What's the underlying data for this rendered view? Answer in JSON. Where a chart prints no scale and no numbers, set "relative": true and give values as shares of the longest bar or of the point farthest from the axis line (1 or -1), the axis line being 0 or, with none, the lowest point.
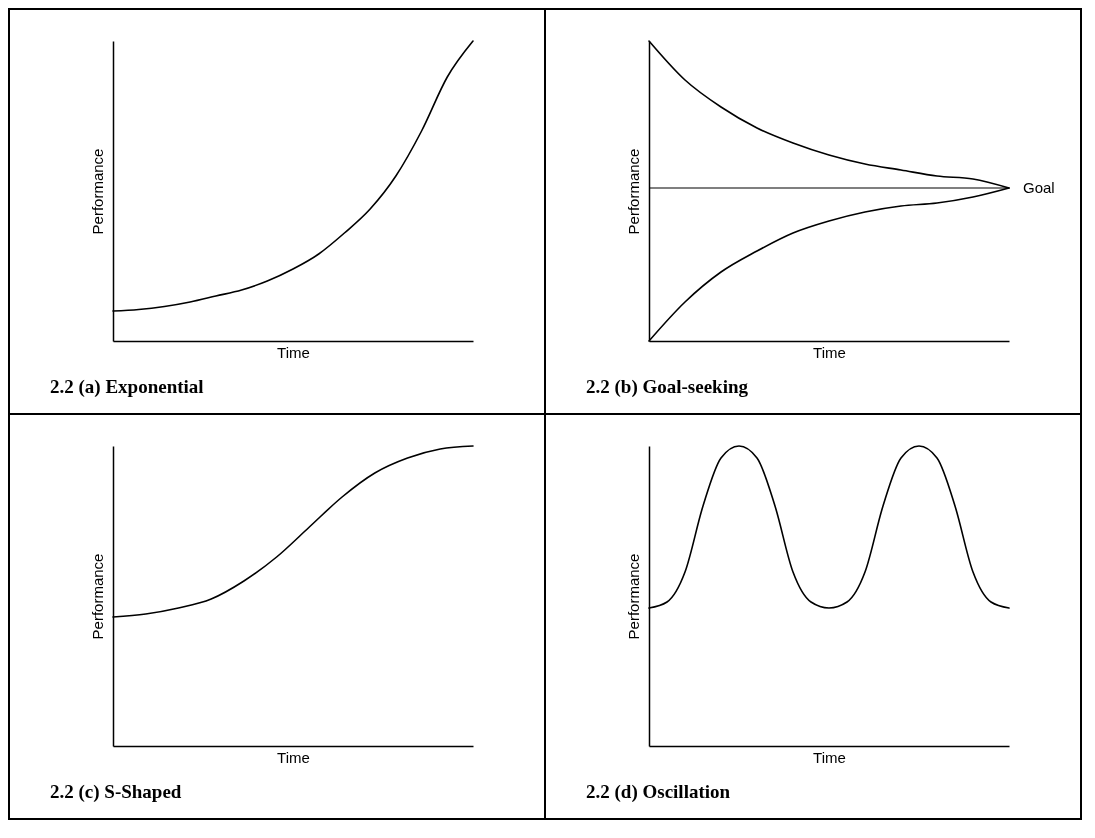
{
  "chart_data": [
    {
      "type": "line",
      "title": "2.2 (a) Exponential",
      "xlabel": "Time",
      "ylabel": "Performance",
      "relative": true,
      "tick_labels": false,
      "categories": [
        null,
        null,
        null,
        null,
        null,
        null,
        null,
        null,
        null,
        null,
        null,
        null,
        null,
        null,
        null
      ],
      "series": [
        {
          "color": "#000000",
          "values": [
            0.1,
            0.105,
            0.115,
            0.13,
            0.15,
            0.17,
            0.2,
            0.24,
            0.29,
            0.36,
            0.44,
            0.55,
            0.7,
            0.88,
            1.0
          ]
        }
      ]
    },
    {
      "type": "line",
      "title": "2.2 (b) Goal-seeking",
      "xlabel": "Time",
      "ylabel": "Performance",
      "relative": true,
      "tick_labels": false,
      "categories": [
        null,
        null,
        null,
        null,
        null,
        null,
        null,
        null,
        null,
        null,
        null
      ],
      "series": [
        {
          "color": "#000000",
          "values": [
            1.0,
            0.87,
            0.78,
            0.71,
            0.66,
            0.62,
            0.59,
            0.57,
            0.55,
            0.54,
            0.51
          ]
        },
        {
          "color": "#000000",
          "values": [
            0,
            0.13,
            0.23,
            0.3,
            0.36,
            0.4,
            0.43,
            0.45,
            0.46,
            0.48,
            0.51
          ]
        }
      ],
      "ref_lines": [
        {
          "axis": "y",
          "value": 0.51,
          "label": "Goal",
          "color": "#000000"
        }
      ]
    },
    {
      "type": "line",
      "title": "2.2 (c) S-Shaped",
      "xlabel": "Time",
      "ylabel": "Performance",
      "relative": true,
      "tick_labels": false,
      "categories": [
        null,
        null,
        null,
        null,
        null,
        null,
        null,
        null,
        null,
        null,
        null,
        null
      ],
      "series": [
        {
          "color": "#000000",
          "values": [
            0.43,
            0.44,
            0.46,
            0.49,
            0.55,
            0.63,
            0.73,
            0.83,
            0.91,
            0.96,
            0.99,
            1.0
          ]
        }
      ]
    },
    {
      "type": "line",
      "title": "2.2 (d) Oscillation",
      "xlabel": "Time",
      "ylabel": "Performance",
      "relative": true,
      "tick_labels": false,
      "categories": [
        null,
        null,
        null,
        null,
        null,
        null,
        null,
        null,
        null,
        null,
        null,
        null,
        null,
        null,
        null,
        null,
        null,
        null,
        null,
        null,
        null
      ],
      "series": [
        {
          "color": "#000000",
          "values": [
            0.46,
            0.48,
            0.58,
            0.8,
            0.96,
            1.0,
            0.96,
            0.8,
            0.58,
            0.48,
            0.46,
            0.48,
            0.58,
            0.8,
            0.96,
            1.0,
            0.96,
            0.8,
            0.58,
            0.48,
            0.46
          ]
        }
      ]
    }
  ]
}
